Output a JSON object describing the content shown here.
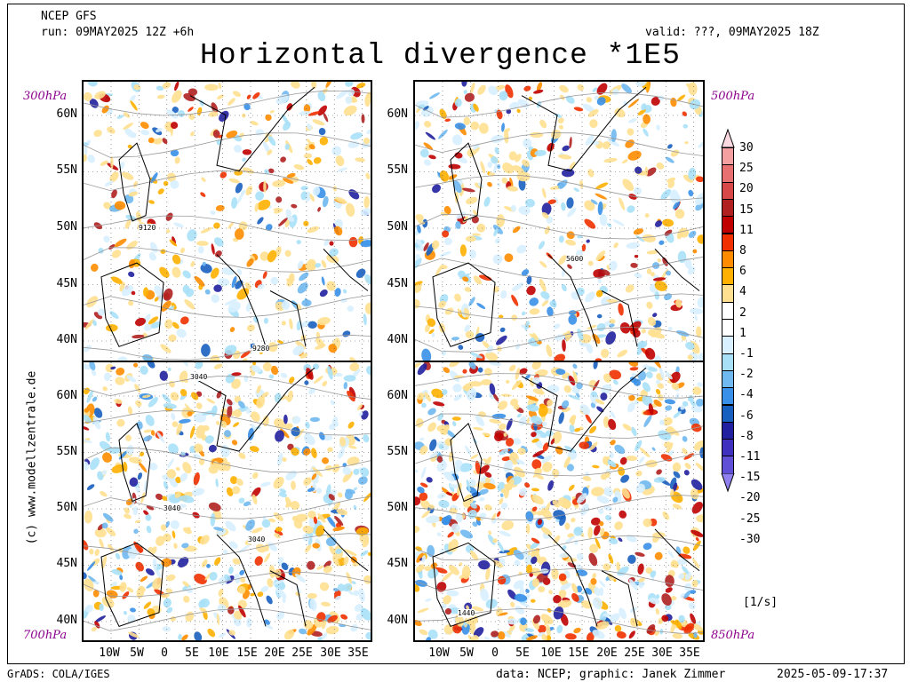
{
  "header": {
    "source": "NCEP GFS",
    "run": "run: 09MAY2025 12Z +6h",
    "valid": "valid: ???, 09MAY2025 18Z",
    "title": "Horizontal divergence *1E5"
  },
  "panels": [
    {
      "level": "300hPa",
      "contours": [
        "9120",
        "9280"
      ]
    },
    {
      "level": "500hPa",
      "contours": [
        "5600"
      ]
    },
    {
      "level": "700hPa",
      "contours": [
        "3040",
        "3040",
        "3040"
      ]
    },
    {
      "level": "850hPa",
      "contours": [
        "1440"
      ]
    }
  ],
  "latitudes": [
    "60N",
    "55N",
    "50N",
    "45N",
    "40N"
  ],
  "longitudes": [
    "10W",
    "5W",
    "0",
    "5E",
    "10E",
    "15E",
    "20E",
    "25E",
    "30E",
    "35E"
  ],
  "colorbar": {
    "labels": [
      "30",
      "25",
      "20",
      "15",
      "11",
      "8",
      "6",
      "4",
      "2",
      "1",
      "-1",
      "-2",
      "-4",
      "-6",
      "-8",
      "-11",
      "-15",
      "-20",
      "-25",
      "-30"
    ],
    "colors": [
      "#f4a0a0",
      "#e87070",
      "#d84848",
      "#b02020",
      "#c00000",
      "#f03000",
      "#ff8c00",
      "#ffb000",
      "#ffe090",
      "#ffffff",
      "#ffffff",
      "#d8f0ff",
      "#a8e0f8",
      "#70b8f0",
      "#3890e8",
      "#1860c0",
      "#2020a0",
      "#4030c0",
      "#6050d8",
      "#9080f0"
    ],
    "unit": "[1/s]"
  },
  "footer": {
    "software": "GrADS: COLA/IGES",
    "credits": "data: NCEP; graphic: Janek Zimmer",
    "timestamp": "2025-05-09-17:37",
    "watermark": "(c) www.modellzentrale.de"
  }
}
